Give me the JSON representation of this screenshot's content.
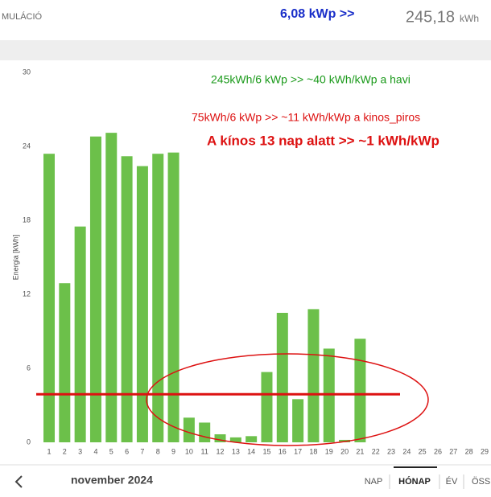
{
  "header": {
    "title": "MULÁCIÓ",
    "power": "6,08 kWp >>",
    "total": "245,18",
    "unit": "kWh"
  },
  "chart_data": {
    "type": "bar",
    "y_label": "Energia [kWh]",
    "color": "#6cc04a",
    "categories": [
      "1",
      "2",
      "3",
      "4",
      "5",
      "6",
      "7",
      "8",
      "9",
      "10",
      "11",
      "12",
      "13",
      "14",
      "15",
      "16",
      "17",
      "18",
      "19",
      "20",
      "21",
      "22",
      "23",
      "24",
      "25",
      "26",
      "27",
      "28",
      "29"
    ],
    "values": [
      23.4,
      12.9,
      17.5,
      24.8,
      25.1,
      23.2,
      22.4,
      23.4,
      23.5,
      2.0,
      1.6,
      0.65,
      0.4,
      0.5,
      5.7,
      10.5,
      3.5,
      10.8,
      7.6,
      0.2,
      8.4,
      null,
      null,
      null,
      null,
      null,
      null,
      null,
      null
    ],
    "ylim": [
      0,
      30
    ],
    "yticks": [
      0,
      6,
      12,
      18,
      24,
      30
    ],
    "reference_line": 3.9,
    "reference_color": "#d11",
    "annotations": [
      "245kWh/6 kWp >>  ~40 kWh/kWp a havi",
      "75kWh/6 kWp >>  ~11 kWh/kWp a kinos_piros",
      "A kínos 13 nap alatt >> ~1 kWh/kWp"
    ]
  },
  "footer": {
    "period": "november 2024",
    "tabs": [
      "NAP",
      "HÓNAP",
      "ÉV",
      "ÖSS"
    ]
  }
}
